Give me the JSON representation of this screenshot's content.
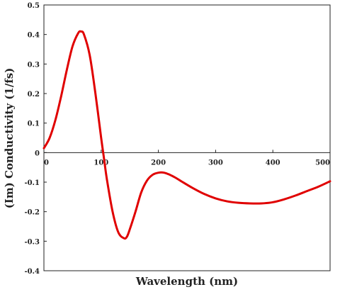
{
  "chart_data": {
    "type": "line",
    "title": "",
    "xlabel": "Wavelength (nm)",
    "ylabel": "(Im) Conductivity (1/fs)",
    "xlim": [
      0,
      500
    ],
    "ylim": [
      -0.4,
      0.5
    ],
    "x_ticks": [
      "0",
      "100",
      "200",
      "300",
      "400",
      "500"
    ],
    "y_ticks": [
      "0.5",
      "0.4",
      "0.3",
      "0.2",
      "0.1",
      "0",
      "-0.1",
      "-0.2",
      "-0.3",
      "-0.4"
    ],
    "grid": false,
    "legend": "none",
    "series": [
      {
        "color": "#e00000",
        "x": [
          0,
          10,
          20,
          30,
          40,
          50,
          60,
          65,
          70,
          80,
          90,
          100,
          105,
          110,
          120,
          130,
          140,
          145,
          150,
          160,
          170,
          180,
          190,
          200,
          210,
          220,
          230,
          240,
          260,
          280,
          300,
          320,
          340,
          360,
          380,
          400,
          420,
          440,
          460,
          480,
          500
        ],
        "y": [
          0.015,
          0.05,
          0.11,
          0.19,
          0.28,
          0.36,
          0.405,
          0.41,
          0.4,
          0.33,
          0.2,
          0.05,
          -0.02,
          -0.09,
          -0.2,
          -0.27,
          -0.29,
          -0.285,
          -0.26,
          -0.2,
          -0.135,
          -0.095,
          -0.075,
          -0.068,
          -0.068,
          -0.075,
          -0.085,
          -0.097,
          -0.12,
          -0.14,
          -0.155,
          -0.165,
          -0.17,
          -0.172,
          -0.172,
          -0.168,
          -0.158,
          -0.145,
          -0.13,
          -0.115,
          -0.097
        ]
      }
    ]
  }
}
